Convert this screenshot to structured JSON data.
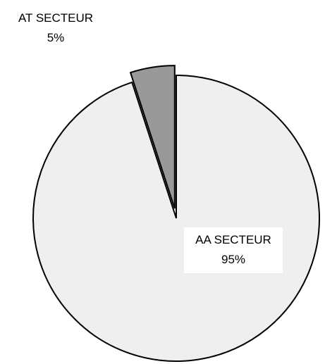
{
  "chart_data": {
    "type": "pie",
    "title": "",
    "slices": [
      {
        "name": "AA SECTEUR",
        "value": 95,
        "percent_label": "95%",
        "color": "#efefef",
        "exploded": false
      },
      {
        "name": "AT SECTEUR",
        "value": 5,
        "percent_label": "5%",
        "color": "#999999",
        "exploded": true
      }
    ],
    "outline_color": "#000000",
    "legend": "none"
  }
}
